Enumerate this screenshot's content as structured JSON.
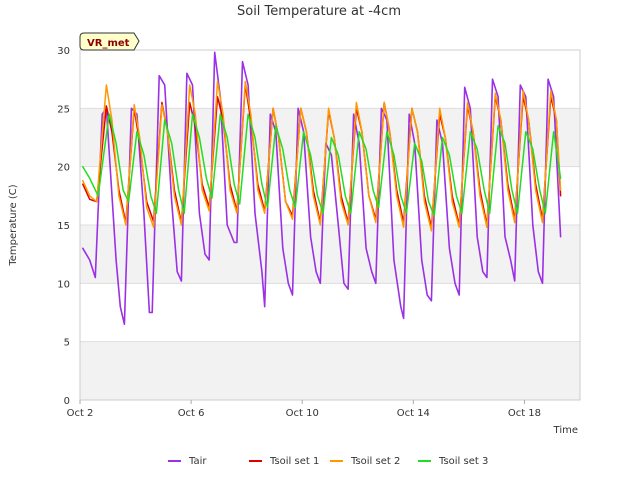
{
  "chart_data": {
    "type": "line",
    "title": "Soil Temperature at -4cm",
    "xlabel": "Time",
    "ylabel": "Temperature (C)",
    "badge": "VR_met",
    "xlim": [
      0,
      18
    ],
    "ylim": [
      0,
      30
    ],
    "yticks": [
      0,
      5,
      10,
      15,
      20,
      25,
      30
    ],
    "xticks": [
      {
        "value": 0,
        "label": "Oct 2"
      },
      {
        "value": 4,
        "label": "Oct 6"
      },
      {
        "value": 8,
        "label": "Oct 10"
      },
      {
        "value": 12,
        "label": "Oct 14"
      },
      {
        "value": 16,
        "label": "Oct 18"
      }
    ],
    "grid": true,
    "legend": "bottom",
    "series": [
      {
        "name": "Tair",
        "color": "#9b30e6",
        "width": 1.6,
        "x": [
          0.1,
          0.35,
          0.55,
          0.8,
          0.95,
          1.3,
          1.45,
          1.6,
          1.85,
          2.05,
          2.3,
          2.5,
          2.6,
          2.85,
          3.05,
          3.3,
          3.5,
          3.65,
          3.85,
          4.05,
          4.3,
          4.5,
          4.65,
          4.85,
          5.05,
          5.3,
          5.55,
          5.65,
          5.85,
          6.05,
          6.3,
          6.55,
          6.65,
          6.85,
          7.05,
          7.3,
          7.5,
          7.65,
          7.85,
          8.05,
          8.3,
          8.5,
          8.65,
          8.85,
          9.05,
          9.3,
          9.5,
          9.65,
          9.85,
          10.05,
          10.3,
          10.5,
          10.65,
          10.85,
          11.05,
          11.3,
          11.55,
          11.65,
          11.85,
          12.05,
          12.3,
          12.5,
          12.65,
          12.85,
          13.05,
          13.3,
          13.5,
          13.65,
          13.85,
          14.05,
          14.3,
          14.5,
          14.65,
          14.85,
          15.05,
          15.3,
          15.5,
          15.65,
          15.85,
          16.05,
          16.3,
          16.5,
          16.65,
          16.85,
          17.05,
          17.3
        ],
        "y": [
          13,
          12,
          10.5,
          24.5,
          25,
          12,
          8,
          6.5,
          25,
          24.5,
          16,
          7.5,
          7.5,
          27.8,
          27,
          17,
          11,
          10.2,
          28,
          27,
          16,
          12.5,
          12,
          29.8,
          26,
          15,
          13.5,
          13.5,
          29,
          27,
          16,
          11,
          8,
          24.5,
          23,
          13,
          10,
          9,
          25,
          23,
          14,
          11,
          10,
          22,
          21,
          15,
          10,
          9.5,
          24.5,
          22,
          13,
          11,
          10,
          25,
          24,
          12,
          8,
          7,
          24.5,
          22,
          12,
          9,
          8.5,
          24,
          22,
          13,
          10,
          9,
          26.8,
          25,
          14,
          11,
          10.5,
          27.5,
          26,
          14,
          12,
          10.2,
          27,
          26,
          15,
          11,
          10,
          27.5,
          26,
          14
        ]
      },
      {
        "name": "Tsoil set 1",
        "color": "#dd0000",
        "width": 1.5,
        "x": [
          0.1,
          0.35,
          0.6,
          0.95,
          1.15,
          1.4,
          1.65,
          1.95,
          2.15,
          2.4,
          2.65,
          2.95,
          3.15,
          3.4,
          3.65,
          3.95,
          4.15,
          4.4,
          4.65,
          4.95,
          5.15,
          5.4,
          5.65,
          5.95,
          6.15,
          6.4,
          6.65,
          6.95,
          7.15,
          7.4,
          7.65,
          7.95,
          8.15,
          8.4,
          8.65,
          8.95,
          9.15,
          9.4,
          9.65,
          9.95,
          10.15,
          10.4,
          10.65,
          10.95,
          11.15,
          11.4,
          11.65,
          11.95,
          12.15,
          12.4,
          12.65,
          12.95,
          13.15,
          13.4,
          13.65,
          13.95,
          14.15,
          14.4,
          14.65,
          14.95,
          15.15,
          15.4,
          15.65,
          15.95,
          16.15,
          16.4,
          16.65,
          16.95,
          17.15,
          17.3
        ],
        "y": [
          18.5,
          17.2,
          17,
          25.2,
          23,
          18,
          15.2,
          25,
          22,
          17,
          15.3,
          25.5,
          23,
          18,
          15.2,
          25.5,
          23.5,
          18.5,
          16.5,
          26,
          24,
          18.5,
          16.2,
          27,
          24,
          18.5,
          16.2,
          25,
          22.5,
          17,
          15.8,
          25,
          23,
          18,
          15.2,
          24.8,
          22.5,
          17.5,
          15.2,
          25,
          23,
          17.5,
          15.5,
          25.5,
          23,
          18,
          15.2,
          25,
          23,
          17.5,
          14.8,
          24.5,
          22.5,
          17.5,
          15,
          25.2,
          23,
          18,
          15,
          26,
          24,
          18.5,
          15.5,
          26,
          24,
          18.5,
          15.5,
          26,
          24,
          17.5
        ]
      },
      {
        "name": "Tsoil set 2",
        "color": "#ff9900",
        "width": 1.5,
        "x": [
          0.1,
          0.35,
          0.6,
          0.95,
          1.15,
          1.4,
          1.65,
          1.95,
          2.15,
          2.4,
          2.65,
          2.95,
          3.15,
          3.4,
          3.65,
          3.95,
          4.15,
          4.4,
          4.65,
          4.95,
          5.15,
          5.4,
          5.65,
          5.95,
          6.15,
          6.4,
          6.65,
          6.95,
          7.15,
          7.4,
          7.65,
          7.95,
          8.15,
          8.4,
          8.65,
          8.95,
          9.15,
          9.4,
          9.65,
          9.95,
          10.15,
          10.4,
          10.65,
          10.95,
          11.15,
          11.4,
          11.65,
          11.95,
          12.15,
          12.4,
          12.65,
          12.95,
          13.15,
          13.4,
          13.65,
          13.95,
          14.15,
          14.4,
          14.65,
          14.95,
          15.15,
          15.4,
          15.65,
          15.95,
          16.15,
          16.4,
          16.65,
          16.95,
          17.15,
          17.3
        ],
        "y": [
          18.8,
          17.5,
          17,
          27,
          24,
          17.5,
          15,
          25.3,
          22.5,
          16.5,
          14.8,
          25.3,
          23,
          17.5,
          15,
          27,
          24.5,
          18,
          16.2,
          27.3,
          24.5,
          18,
          16,
          27.3,
          24.5,
          18,
          16,
          25,
          22.5,
          17,
          15.5,
          25,
          23,
          17.5,
          15,
          25,
          22.5,
          17,
          15,
          25.5,
          23,
          17.5,
          15.2,
          25.5,
          23,
          17.5,
          14.8,
          25,
          23,
          17,
          14.5,
          25,
          22.5,
          17,
          14.8,
          25.5,
          23,
          17.5,
          14.8,
          26.3,
          24,
          18,
          15.2,
          26.5,
          24,
          18,
          15.2,
          26.5,
          24,
          18
        ]
      },
      {
        "name": "Tsoil set 3",
        "color": "#22dd22",
        "width": 1.5,
        "x": [
          0.1,
          0.35,
          0.65,
          1.05,
          1.3,
          1.55,
          1.75,
          2.05,
          2.3,
          2.55,
          2.75,
          3.05,
          3.3,
          3.55,
          3.75,
          4.05,
          4.3,
          4.55,
          4.75,
          5.05,
          5.3,
          5.55,
          5.75,
          6.05,
          6.3,
          6.55,
          6.75,
          7.05,
          7.3,
          7.55,
          7.75,
          8.05,
          8.3,
          8.55,
          8.75,
          9.05,
          9.3,
          9.55,
          9.75,
          10.05,
          10.3,
          10.55,
          10.75,
          11.05,
          11.3,
          11.55,
          11.75,
          12.05,
          12.3,
          12.55,
          12.75,
          13.05,
          13.3,
          13.55,
          13.75,
          14.05,
          14.3,
          14.55,
          14.75,
          15.05,
          15.3,
          15.55,
          15.75,
          16.05,
          16.3,
          16.55,
          16.75,
          17.05,
          17.3
        ],
        "y": [
          20,
          19,
          17.5,
          24.5,
          22,
          18,
          17,
          23,
          21,
          17.5,
          16,
          24,
          22,
          18,
          16,
          24.5,
          22.5,
          19,
          17.3,
          24.5,
          22.5,
          18.5,
          16.8,
          24.5,
          22.5,
          18.5,
          16.5,
          23.5,
          21.5,
          18,
          16.5,
          23,
          21,
          17.5,
          16,
          22.5,
          21,
          17.5,
          16,
          23,
          21.5,
          18,
          16.5,
          23,
          21,
          17.5,
          16,
          22,
          20.5,
          17,
          15.8,
          22.5,
          21,
          17.5,
          16,
          23,
          21.5,
          18,
          16,
          23.5,
          22,
          18,
          16,
          23,
          21.5,
          18,
          16,
          23,
          19
        ]
      }
    ]
  }
}
